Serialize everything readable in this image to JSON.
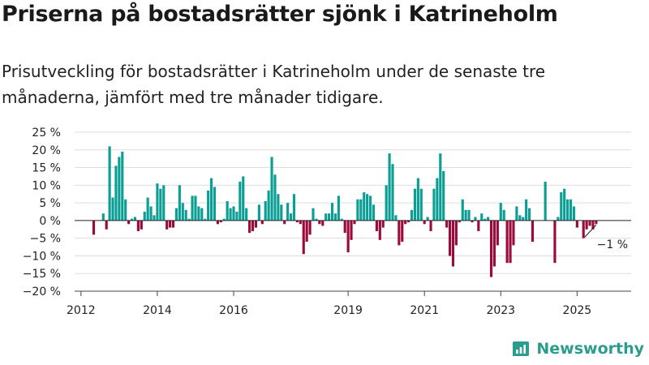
{
  "header": {
    "title": "Priserna på bostadsrätter sjönk i Katrineholm",
    "subtitle": "Prisutveckling för bostadsrätter i Katrineholm under de senaste tre månaderna, jämfört med tre månader tidigare."
  },
  "brand": {
    "name": "Newsworthy",
    "icon": "newsworthy-logo-icon"
  },
  "colors": {
    "positive": "#0b9e94",
    "negative": "#9b0a3c",
    "grid": "#dddddd",
    "axis": "#222222"
  },
  "chart_data": {
    "type": "bar",
    "unit": "%",
    "ylim": [
      -20,
      25
    ],
    "yticks": [
      {
        "value": 25,
        "label": "25 %"
      },
      {
        "value": 20,
        "label": "20 %"
      },
      {
        "value": 15,
        "label": "15 %"
      },
      {
        "value": 10,
        "label": "10 %"
      },
      {
        "value": 5,
        "label": "5 %"
      },
      {
        "value": 0,
        "label": "0 %"
      },
      {
        "value": -5,
        "label": "−5 %"
      },
      {
        "value": -10,
        "label": "−10 %"
      },
      {
        "value": -15,
        "label": "−15 %"
      },
      {
        "value": -20,
        "label": "−20 %"
      }
    ],
    "xlim": [
      "2011-11",
      "2026-06"
    ],
    "xticks": [
      {
        "date": "2012-01",
        "label": "2012"
      },
      {
        "date": "2014-01",
        "label": "2014"
      },
      {
        "date": "2016-01",
        "label": "2016"
      },
      {
        "date": "2019-01",
        "label": "2019"
      },
      {
        "date": "2021-01",
        "label": "2021"
      },
      {
        "date": "2023-01",
        "label": "2023"
      },
      {
        "date": "2025-01",
        "label": "2025"
      }
    ],
    "grid": true,
    "legend": "none",
    "series": [
      {
        "start": "2012-05",
        "frequency": "monthly",
        "values": [
          -4,
          null,
          null,
          2,
          -2.5,
          21,
          6.5,
          15.5,
          18,
          19.5,
          6,
          -1,
          0.5,
          1,
          -3,
          -2.5,
          2.5,
          6.5,
          4,
          1.5,
          10.5,
          9,
          10,
          -2.5,
          -2,
          -2,
          3.5,
          10,
          5,
          3,
          0.5,
          7,
          7,
          4,
          3.5,
          0.5,
          8.5,
          12,
          9.5,
          -1,
          -0.5,
          0.5,
          5.5,
          3.5,
          4,
          2.5,
          11,
          12.5,
          3.5,
          -3.5,
          -3,
          -2,
          4.5,
          -1,
          5.5,
          8.5,
          18,
          13,
          7.5,
          4.5,
          -1,
          5,
          2,
          7.5,
          -0.5,
          -1,
          -9.5,
          -6,
          -4,
          3.5,
          0.5,
          -1,
          -1.5,
          2,
          2,
          5,
          2,
          7,
          0.5,
          -3.5,
          -9,
          -5.5,
          -1,
          6,
          6,
          8,
          7.5,
          7,
          4.5,
          -3,
          -5.5,
          -2,
          10,
          19,
          16,
          1.5,
          -7,
          -6,
          -1,
          -0.5,
          3,
          9,
          12,
          9,
          -1,
          1,
          -3,
          9,
          12,
          19,
          14,
          -2,
          -10,
          -13,
          -7,
          -0.5,
          6,
          3,
          3,
          -0.5,
          1,
          -3,
          2,
          0.5,
          1,
          -16,
          -13,
          -7,
          5,
          3,
          -12,
          -12,
          -7,
          4,
          1.5,
          1,
          6,
          3.5,
          -6,
          null,
          null,
          null,
          11,
          null,
          null,
          -12,
          1,
          8,
          9,
          6,
          6,
          4,
          -2,
          null,
          -5,
          -2.5,
          -1.5,
          -2.5,
          -1
        ]
      }
    ],
    "annotations": [
      {
        "date": "2025-07",
        "value": -1,
        "label": "−1 %"
      }
    ]
  }
}
